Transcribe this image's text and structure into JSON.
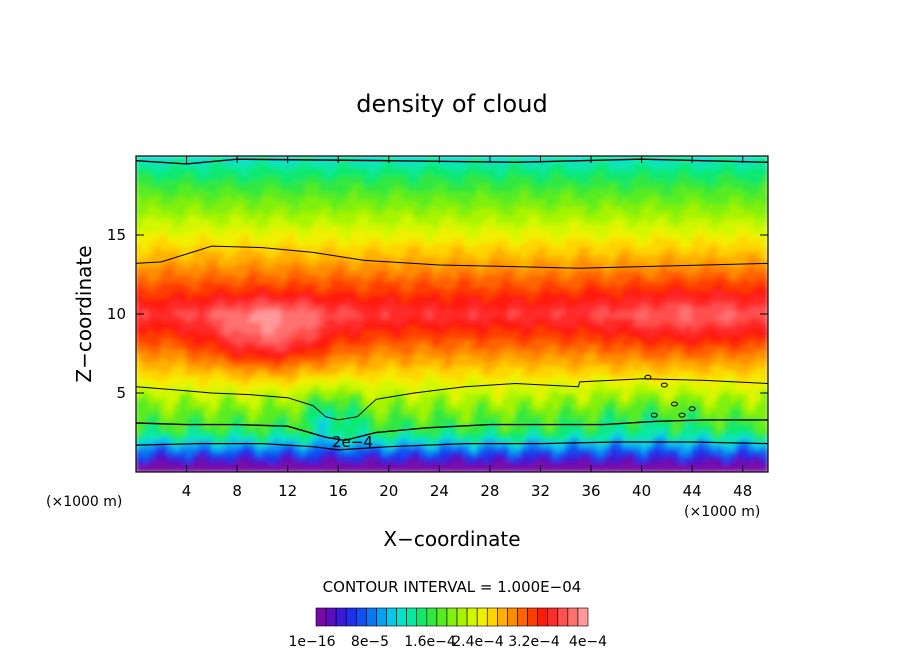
{
  "chart_data": {
    "type": "heatmap",
    "title": "density of cloud",
    "xlabel": "X−coordinate",
    "ylabel": "Z−coordinate",
    "x_unit_left": "(×1000 m)",
    "x_unit_right": "(×1000 m)",
    "xlim": [
      0,
      50
    ],
    "ylim": [
      0,
      20
    ],
    "x_ticks": [
      4,
      8,
      12,
      16,
      20,
      24,
      28,
      32,
      36,
      40,
      44,
      48
    ],
    "y_ticks": [
      5,
      10,
      15
    ],
    "contour_interval_label": "CONTOUR INTERVAL = 1.000E−04",
    "contour_label": "2e−4",
    "colorbar_labels": [
      "1e−16",
      "8e−5",
      "1.6e−4",
      "2.4e−4",
      "3.2e−4",
      "4e−4"
    ],
    "colorbar_colors": [
      "#7a0aa8",
      "#5a0ec0",
      "#3a1ad8",
      "#2030e8",
      "#1050f0",
      "#0878f0",
      "#08a0f0",
      "#08c8e8",
      "#08e0c8",
      "#08e8a0",
      "#10e870",
      "#30e840",
      "#58ec20",
      "#80f010",
      "#a8f400",
      "#d0f800",
      "#f0f000",
      "#ffd400",
      "#ffb000",
      "#ff8c00",
      "#ff6400",
      "#ff3c00",
      "#ff1a0a",
      "#ff2c2c",
      "#ff5050",
      "#ff7070",
      "#ff9898"
    ]
  }
}
